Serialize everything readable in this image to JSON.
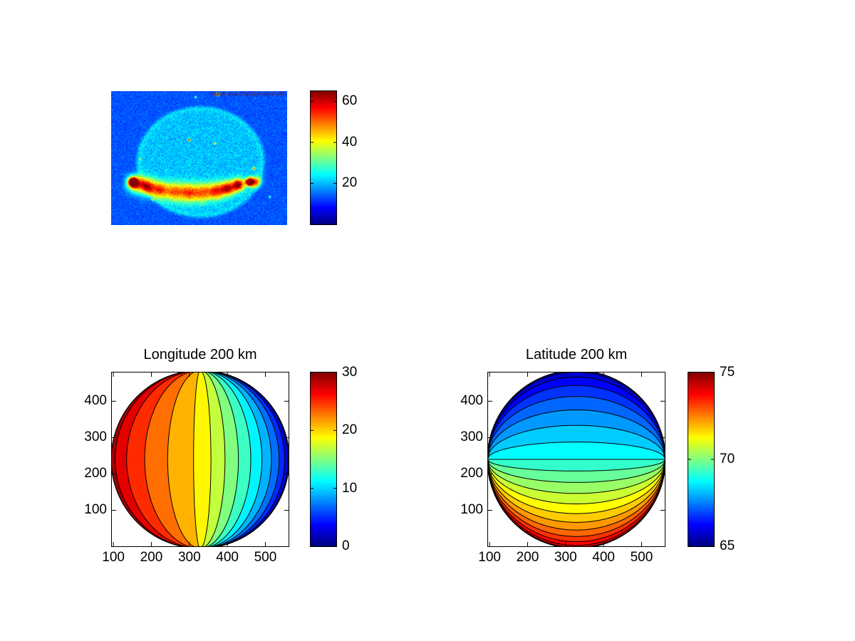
{
  "figure": {
    "background": "#ffffff",
    "contour_line_color": "#000000",
    "axis_color": "#000000"
  },
  "chart_data": [
    {
      "id": "allsky",
      "type": "heatmap",
      "title": "",
      "description": "All-sky auroral camera image rendered with jet colormap: noisy royal-blue background, lighter cyan circular field of view, bright yellow-orange auroral arc across the lower part of the disk, a few bright point specks and an illegible dark timestamp strip along the top edge",
      "value_range": [
        0,
        65
      ],
      "colorbar_ticks": [
        20,
        40,
        60
      ],
      "colormap": "jet",
      "legend_position": "right"
    },
    {
      "id": "longitude",
      "type": "contour",
      "title": "Longitude 200 km",
      "x_ticks": [
        100,
        200,
        300,
        400,
        500
      ],
      "y_ticks": [
        100,
        200,
        300,
        400
      ],
      "x_range": [
        96,
        561
      ],
      "y_range": [
        1,
        479
      ],
      "contour_min": 0,
      "contour_max": 30,
      "contour_step": 2,
      "center_value": 19.5,
      "band_orientation": "vertical",
      "high_side": "left",
      "colorbar_ticks": [
        0,
        10,
        20,
        30
      ],
      "colormap": "jet",
      "grid": false,
      "legend_position": "right"
    },
    {
      "id": "latitude",
      "type": "contour",
      "title": "Latitude 200 km",
      "x_ticks": [
        100,
        200,
        300,
        400,
        500
      ],
      "y_ticks": [
        100,
        200,
        300,
        400
      ],
      "x_range": [
        96,
        561
      ],
      "y_range": [
        1,
        479
      ],
      "contour_min": 65,
      "contour_max": 75,
      "contour_step": 0.5,
      "center_value": 69,
      "band_orientation": "horizontal",
      "high_side": "bottom",
      "colorbar_ticks": [
        65,
        70,
        75
      ],
      "colormap": "jet",
      "grid": false,
      "legend_position": "right"
    }
  ]
}
